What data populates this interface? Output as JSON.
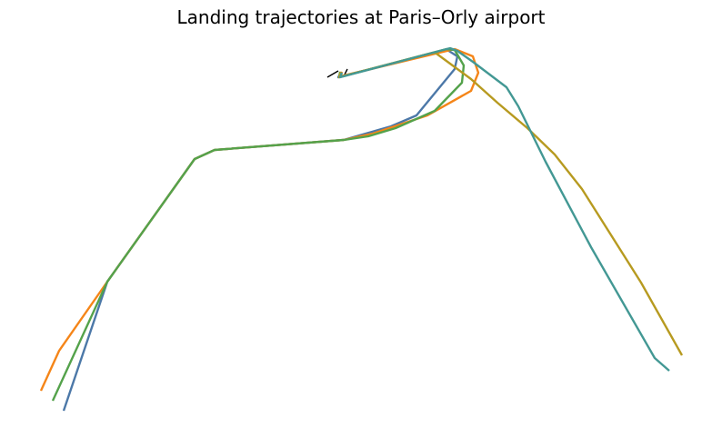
{
  "chart_data": {
    "type": "line",
    "title": "Landing trajectories at Paris–Orly airport",
    "xlabel": "",
    "ylabel": "",
    "axes_visible": false,
    "grid": false,
    "legend": "none",
    "runway": {
      "color": "#000000",
      "shape": "short black segments near the runway threshold"
    },
    "series": [
      {
        "color": "#4c78a8",
        "points": [
          [
            70,
            452
          ],
          [
            118,
            310
          ],
          [
            214,
            175
          ],
          [
            236,
            165
          ],
          [
            378,
            154
          ],
          [
            430,
            139
          ],
          [
            458,
            127
          ],
          [
            500,
            76
          ],
          [
            503,
            62
          ],
          [
            492,
            55
          ],
          [
            372,
            85
          ],
          [
            375,
            80
          ]
        ]
      },
      {
        "color": "#f58518",
        "points": [
          [
            45,
            430
          ],
          [
            65,
            386
          ],
          [
            118,
            310
          ],
          [
            214,
            175
          ],
          [
            236,
            165
          ],
          [
            378,
            154
          ],
          [
            410,
            147
          ],
          [
            470,
            127
          ],
          [
            518,
            100
          ],
          [
            526,
            80
          ],
          [
            520,
            62
          ],
          [
            500,
            54
          ],
          [
            374,
            84
          ],
          [
            376,
            79
          ]
        ]
      },
      {
        "color": "#54a24b",
        "points": [
          [
            58,
            441
          ],
          [
            118,
            310
          ],
          [
            214,
            175
          ],
          [
            236,
            165
          ],
          [
            378,
            154
          ],
          [
            405,
            150
          ],
          [
            435,
            141
          ],
          [
            478,
            122
          ],
          [
            508,
            91
          ],
          [
            510,
            72
          ],
          [
            500,
            55
          ],
          [
            491,
            54
          ],
          [
            373,
            85
          ],
          [
            374,
            79
          ]
        ]
      },
      {
        "color": "#b79a20",
        "points": [
          [
            750,
            391
          ],
          [
            705,
            311
          ],
          [
            640,
            208
          ],
          [
            610,
            170
          ],
          [
            580,
            141
          ],
          [
            547,
            113
          ],
          [
            518,
            87
          ],
          [
            480,
            59
          ],
          [
            476,
            58
          ],
          [
            373,
            85
          ],
          [
            375,
            79
          ]
        ]
      },
      {
        "color": "#439894",
        "points": [
          [
            736,
            408
          ],
          [
            720,
            394
          ],
          [
            650,
            272
          ],
          [
            600,
            178
          ],
          [
            570,
            117
          ],
          [
            557,
            96
          ],
          [
            520,
            68
          ],
          [
            503,
            56
          ],
          [
            495,
            53
          ],
          [
            374,
            85
          ],
          [
            376,
            80
          ]
        ]
      }
    ]
  }
}
